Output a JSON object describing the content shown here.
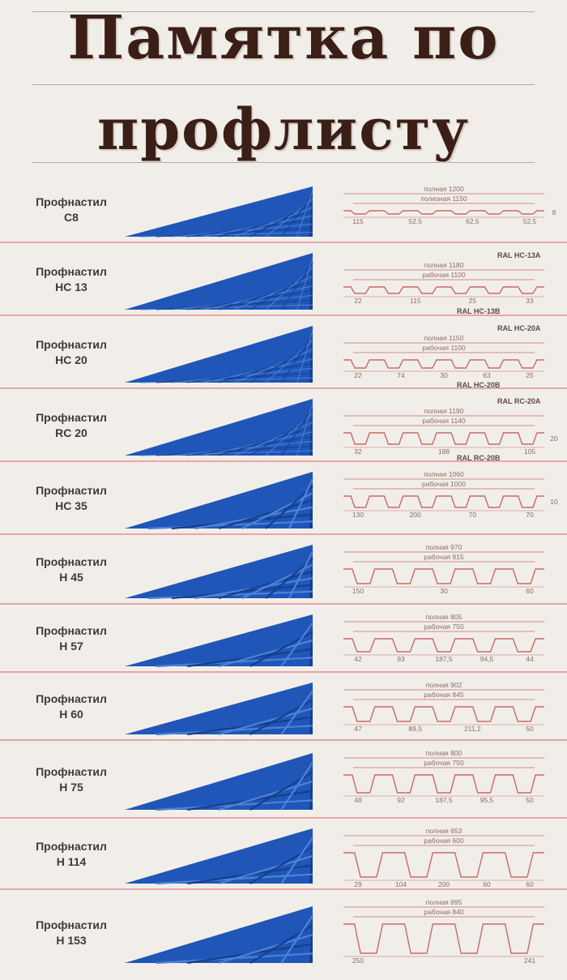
{
  "title": {
    "line1": "Памятка по",
    "line2": "профлисту"
  },
  "colors": {
    "title": "#3b1f17",
    "sheet": "#1f56b8",
    "sheet_dark": "#173f8c",
    "sheet_light": "#4d82d8",
    "drawing": "#c86a66",
    "separator": "#e8a6a6"
  },
  "profiles": [
    {
      "prefix": "Профнастил",
      "code": "С8",
      "full": "полная 1200",
      "work": "полезная 1150",
      "dims": [
        "115",
        "52,5",
        "62,5",
        "52,5"
      ],
      "height": "8",
      "ral_top": "",
      "ral_bottom": ""
    },
    {
      "prefix": "Профнастил",
      "code": "НС 13",
      "full": "полная 1180",
      "work": "рабочая 1100",
      "dims": [
        "22",
        "115",
        "25",
        "33"
      ],
      "height": "",
      "ral_top": "RAL  НС-13А",
      "ral_bottom": "RAL  НС-13В"
    },
    {
      "prefix": "Профнастил",
      "code": "НС 20",
      "full": "полная 1150",
      "work": "рабочая 1100",
      "dims": [
        "22",
        "74",
        "30",
        "63",
        "25"
      ],
      "height": "",
      "ral_top": "RAL  НС-20А",
      "ral_bottom": "RAL  НС-20В"
    },
    {
      "prefix": "Профнастил",
      "code": "RC 20",
      "full": "полная 1190",
      "work": "рабочая 1140",
      "dims": [
        "32",
        "188",
        "105"
      ],
      "height": "20",
      "ral_top": "RAL  RC-20А",
      "ral_bottom": "RAL  RC-20В"
    },
    {
      "prefix": "Профнастил",
      "code": "НС 35",
      "full": "полная 1060",
      "work": "рабочая 1000",
      "dims": [
        "130",
        "200",
        "70",
        "70"
      ],
      "height": "10",
      "ral_top": "",
      "ral_bottom": ""
    },
    {
      "prefix": "Профнастил",
      "code": "Н 45",
      "full": "полная 970",
      "work": "рабочая 915",
      "dims": [
        "150",
        "30",
        "60"
      ],
      "height": "",
      "ral_top": "",
      "ral_bottom": ""
    },
    {
      "prefix": "Профнастил",
      "code": "Н 57",
      "full": "полная 805",
      "work": "рабочая 750",
      "dims": [
        "42",
        "93",
        "187,5",
        "94,5",
        "44"
      ],
      "height": "",
      "ral_top": "",
      "ral_bottom": ""
    },
    {
      "prefix": "Профнастил",
      "code": "Н 60",
      "full": "полная 902",
      "work": "рабочая 845",
      "dims": [
        "47",
        "89,5",
        "211,2",
        "50"
      ],
      "height": "",
      "ral_top": "",
      "ral_bottom": ""
    },
    {
      "prefix": "Профнастил",
      "code": "Н 75",
      "full": "полная 800",
      "work": "рабочая 750",
      "dims": [
        "48",
        "92",
        "187,5",
        "95,5",
        "50"
      ],
      "height": "",
      "ral_top": "",
      "ral_bottom": ""
    },
    {
      "prefix": "Профнастил",
      "code": "Н 114",
      "full": "полная 653",
      "work": "рабочая 600",
      "dims": [
        "29",
        "104",
        "200",
        "60",
        "60"
      ],
      "height": "",
      "ral_top": "",
      "ral_bottom": ""
    },
    {
      "prefix": "Профнастил",
      "code": "Н 153",
      "full": "полная 895",
      "work": "рабочая 840",
      "dims": [
        "250",
        "241"
      ],
      "height": "",
      "ral_top": "",
      "ral_bottom": ""
    }
  ]
}
